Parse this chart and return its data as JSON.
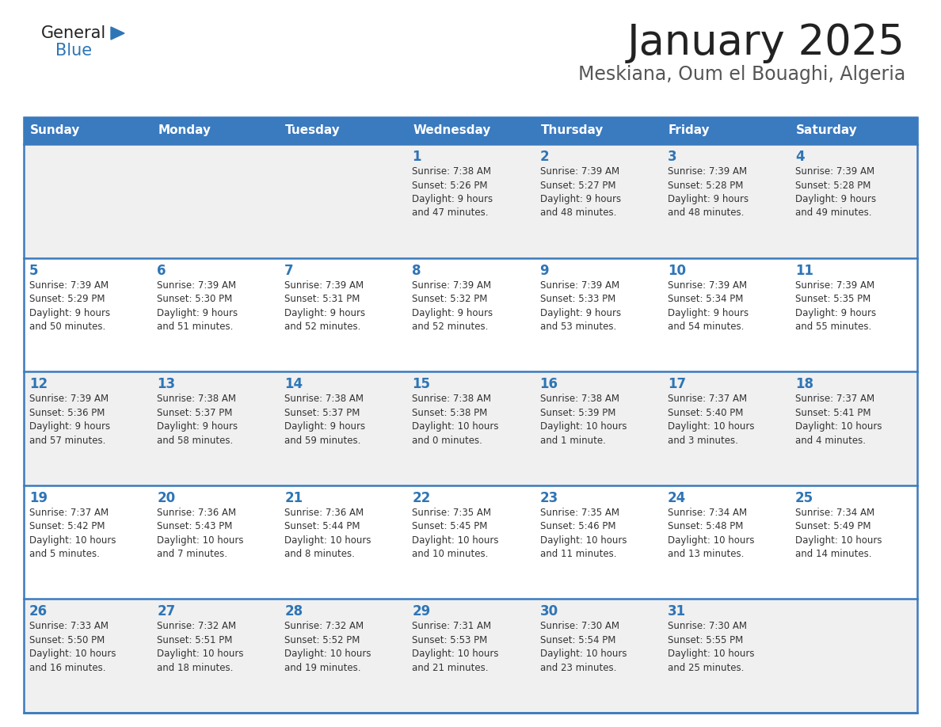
{
  "title": "January 2025",
  "subtitle": "Meskiana, Oum el Bouaghi, Algeria",
  "header_bg_color": "#3a7abf",
  "header_text_color": "#ffffff",
  "row_bg_even": "#f0f0f0",
  "row_bg_odd": "#ffffff",
  "day_num_color": "#2e75b6",
  "text_color": "#333333",
  "line_color": "#3a7abf",
  "days_of_week": [
    "Sunday",
    "Monday",
    "Tuesday",
    "Wednesday",
    "Thursday",
    "Friday",
    "Saturday"
  ],
  "calendar_data": [
    [
      {
        "day": "",
        "info": ""
      },
      {
        "day": "",
        "info": ""
      },
      {
        "day": "",
        "info": ""
      },
      {
        "day": "1",
        "info": "Sunrise: 7:38 AM\nSunset: 5:26 PM\nDaylight: 9 hours\nand 47 minutes."
      },
      {
        "day": "2",
        "info": "Sunrise: 7:39 AM\nSunset: 5:27 PM\nDaylight: 9 hours\nand 48 minutes."
      },
      {
        "day": "3",
        "info": "Sunrise: 7:39 AM\nSunset: 5:28 PM\nDaylight: 9 hours\nand 48 minutes."
      },
      {
        "day": "4",
        "info": "Sunrise: 7:39 AM\nSunset: 5:28 PM\nDaylight: 9 hours\nand 49 minutes."
      }
    ],
    [
      {
        "day": "5",
        "info": "Sunrise: 7:39 AM\nSunset: 5:29 PM\nDaylight: 9 hours\nand 50 minutes."
      },
      {
        "day": "6",
        "info": "Sunrise: 7:39 AM\nSunset: 5:30 PM\nDaylight: 9 hours\nand 51 minutes."
      },
      {
        "day": "7",
        "info": "Sunrise: 7:39 AM\nSunset: 5:31 PM\nDaylight: 9 hours\nand 52 minutes."
      },
      {
        "day": "8",
        "info": "Sunrise: 7:39 AM\nSunset: 5:32 PM\nDaylight: 9 hours\nand 52 minutes."
      },
      {
        "day": "9",
        "info": "Sunrise: 7:39 AM\nSunset: 5:33 PM\nDaylight: 9 hours\nand 53 minutes."
      },
      {
        "day": "10",
        "info": "Sunrise: 7:39 AM\nSunset: 5:34 PM\nDaylight: 9 hours\nand 54 minutes."
      },
      {
        "day": "11",
        "info": "Sunrise: 7:39 AM\nSunset: 5:35 PM\nDaylight: 9 hours\nand 55 minutes."
      }
    ],
    [
      {
        "day": "12",
        "info": "Sunrise: 7:39 AM\nSunset: 5:36 PM\nDaylight: 9 hours\nand 57 minutes."
      },
      {
        "day": "13",
        "info": "Sunrise: 7:38 AM\nSunset: 5:37 PM\nDaylight: 9 hours\nand 58 minutes."
      },
      {
        "day": "14",
        "info": "Sunrise: 7:38 AM\nSunset: 5:37 PM\nDaylight: 9 hours\nand 59 minutes."
      },
      {
        "day": "15",
        "info": "Sunrise: 7:38 AM\nSunset: 5:38 PM\nDaylight: 10 hours\nand 0 minutes."
      },
      {
        "day": "16",
        "info": "Sunrise: 7:38 AM\nSunset: 5:39 PM\nDaylight: 10 hours\nand 1 minute."
      },
      {
        "day": "17",
        "info": "Sunrise: 7:37 AM\nSunset: 5:40 PM\nDaylight: 10 hours\nand 3 minutes."
      },
      {
        "day": "18",
        "info": "Sunrise: 7:37 AM\nSunset: 5:41 PM\nDaylight: 10 hours\nand 4 minutes."
      }
    ],
    [
      {
        "day": "19",
        "info": "Sunrise: 7:37 AM\nSunset: 5:42 PM\nDaylight: 10 hours\nand 5 minutes."
      },
      {
        "day": "20",
        "info": "Sunrise: 7:36 AM\nSunset: 5:43 PM\nDaylight: 10 hours\nand 7 minutes."
      },
      {
        "day": "21",
        "info": "Sunrise: 7:36 AM\nSunset: 5:44 PM\nDaylight: 10 hours\nand 8 minutes."
      },
      {
        "day": "22",
        "info": "Sunrise: 7:35 AM\nSunset: 5:45 PM\nDaylight: 10 hours\nand 10 minutes."
      },
      {
        "day": "23",
        "info": "Sunrise: 7:35 AM\nSunset: 5:46 PM\nDaylight: 10 hours\nand 11 minutes."
      },
      {
        "day": "24",
        "info": "Sunrise: 7:34 AM\nSunset: 5:48 PM\nDaylight: 10 hours\nand 13 minutes."
      },
      {
        "day": "25",
        "info": "Sunrise: 7:34 AM\nSunset: 5:49 PM\nDaylight: 10 hours\nand 14 minutes."
      }
    ],
    [
      {
        "day": "26",
        "info": "Sunrise: 7:33 AM\nSunset: 5:50 PM\nDaylight: 10 hours\nand 16 minutes."
      },
      {
        "day": "27",
        "info": "Sunrise: 7:32 AM\nSunset: 5:51 PM\nDaylight: 10 hours\nand 18 minutes."
      },
      {
        "day": "28",
        "info": "Sunrise: 7:32 AM\nSunset: 5:52 PM\nDaylight: 10 hours\nand 19 minutes."
      },
      {
        "day": "29",
        "info": "Sunrise: 7:31 AM\nSunset: 5:53 PM\nDaylight: 10 hours\nand 21 minutes."
      },
      {
        "day": "30",
        "info": "Sunrise: 7:30 AM\nSunset: 5:54 PM\nDaylight: 10 hours\nand 23 minutes."
      },
      {
        "day": "31",
        "info": "Sunrise: 7:30 AM\nSunset: 5:55 PM\nDaylight: 10 hours\nand 25 minutes."
      },
      {
        "day": "",
        "info": ""
      }
    ]
  ]
}
